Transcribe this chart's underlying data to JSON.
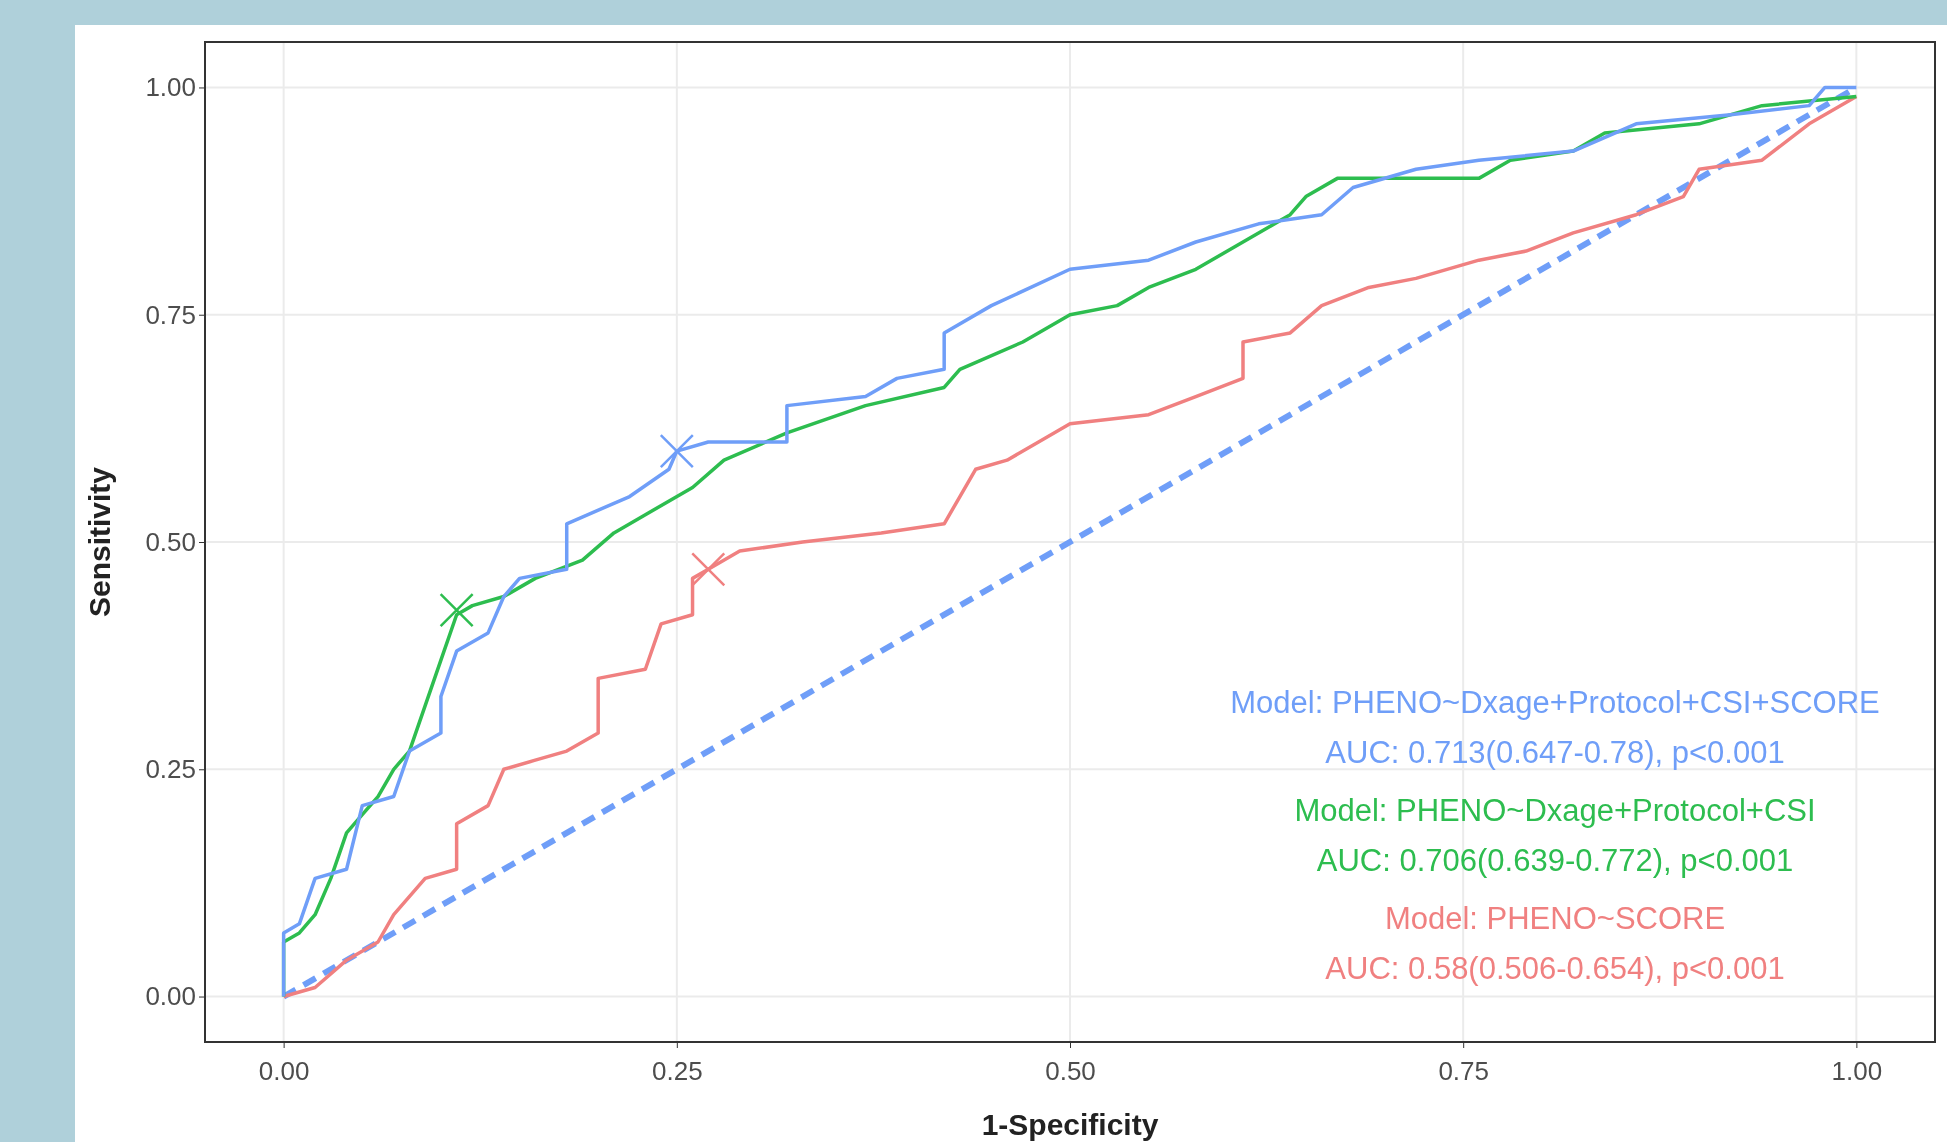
{
  "chart_data": {
    "type": "line",
    "xlabel": "1-Specificity",
    "ylabel": "Sensitivity",
    "xlim": [
      -0.05,
      1.05
    ],
    "ylim": [
      -0.05,
      1.05
    ],
    "xticks": [
      {
        "value": 0,
        "label": "0.00"
      },
      {
        "value": 0.25,
        "label": "0.25"
      },
      {
        "value": 0.5,
        "label": "0.50"
      },
      {
        "value": 0.75,
        "label": "0.75"
      },
      {
        "value": 1,
        "label": "1.00"
      }
    ],
    "yticks": [
      {
        "value": 0,
        "label": "0.00"
      },
      {
        "value": 0.25,
        "label": "0.25"
      },
      {
        "value": 0.5,
        "label": "0.50"
      },
      {
        "value": 0.75,
        "label": "0.75"
      },
      {
        "value": 1,
        "label": "1.00"
      }
    ],
    "grid": true,
    "series": [
      {
        "color": "#6f9ef8",
        "line_style": "dashed",
        "x": [
          0,
          1
        ],
        "values": [
          0,
          1
        ]
      },
      {
        "color": "#f08080",
        "line_style": "solid",
        "x": [
          0,
          0.02,
          0.04,
          0.06,
          0.07,
          0.09,
          0.11,
          0.11,
          0.13,
          0.14,
          0.16,
          0.18,
          0.2,
          0.2,
          0.23,
          0.24,
          0.26,
          0.26,
          0.27,
          0.29,
          0.33,
          0.38,
          0.42,
          0.43,
          0.44,
          0.46,
          0.48,
          0.5,
          0.55,
          0.58,
          0.61,
          0.61,
          0.64,
          0.66,
          0.69,
          0.72,
          0.76,
          0.79,
          0.82,
          0.86,
          0.89,
          0.9,
          0.94,
          0.97,
          1
        ],
        "values": [
          0,
          0.01,
          0.04,
          0.06,
          0.09,
          0.13,
          0.14,
          0.19,
          0.21,
          0.25,
          0.26,
          0.27,
          0.29,
          0.35,
          0.36,
          0.41,
          0.42,
          0.46,
          0.47,
          0.49,
          0.5,
          0.51,
          0.52,
          0.55,
          0.58,
          0.59,
          0.61,
          0.63,
          0.64,
          0.66,
          0.68,
          0.72,
          0.73,
          0.76,
          0.78,
          0.79,
          0.81,
          0.82,
          0.84,
          0.86,
          0.88,
          0.91,
          0.92,
          0.96,
          0.99
        ]
      },
      {
        "color": "#2dbd4f",
        "line_style": "solid",
        "x": [
          0,
          0,
          0.01,
          0.02,
          0.03,
          0.04,
          0.05,
          0.06,
          0.07,
          0.08,
          0.09,
          0.1,
          0.11,
          0.12,
          0.14,
          0.16,
          0.19,
          0.21,
          0.23,
          0.26,
          0.28,
          0.32,
          0.37,
          0.42,
          0.43,
          0.47,
          0.5,
          0.53,
          0.55,
          0.58,
          0.61,
          0.64,
          0.65,
          0.67,
          0.76,
          0.78,
          0.82,
          0.84,
          0.9,
          0.94,
          1
        ],
        "values": [
          0,
          0.06,
          0.07,
          0.09,
          0.13,
          0.18,
          0.2,
          0.22,
          0.25,
          0.27,
          0.32,
          0.37,
          0.42,
          0.43,
          0.44,
          0.46,
          0.48,
          0.51,
          0.53,
          0.56,
          0.59,
          0.62,
          0.65,
          0.67,
          0.69,
          0.72,
          0.75,
          0.76,
          0.78,
          0.8,
          0.83,
          0.86,
          0.88,
          0.9,
          0.9,
          0.92,
          0.93,
          0.95,
          0.96,
          0.98,
          0.99
        ]
      },
      {
        "color": "#6f9ef8",
        "line_style": "solid",
        "x": [
          0,
          0,
          0.01,
          0.02,
          0.04,
          0.05,
          0.07,
          0.08,
          0.1,
          0.1,
          0.11,
          0.13,
          0.14,
          0.15,
          0.18,
          0.18,
          0.22,
          0.245,
          0.25,
          0.27,
          0.32,
          0.32,
          0.37,
          0.39,
          0.42,
          0.42,
          0.45,
          0.5,
          0.55,
          0.58,
          0.62,
          0.66,
          0.68,
          0.72,
          0.76,
          0.82,
          0.86,
          0.92,
          0.97,
          0.98,
          1
        ],
        "values": [
          0,
          0.07,
          0.08,
          0.13,
          0.14,
          0.21,
          0.22,
          0.27,
          0.29,
          0.33,
          0.38,
          0.4,
          0.44,
          0.46,
          0.47,
          0.52,
          0.55,
          0.58,
          0.6,
          0.61,
          0.61,
          0.65,
          0.66,
          0.68,
          0.69,
          0.73,
          0.76,
          0.8,
          0.81,
          0.83,
          0.85,
          0.86,
          0.89,
          0.91,
          0.92,
          0.93,
          0.96,
          0.97,
          0.98,
          1,
          1
        ]
      },
      {
        "type": "scatter",
        "marker": "cross",
        "color": "#6f9ef8",
        "x": [
          0.25
        ],
        "values": [
          0.6
        ]
      },
      {
        "type": "scatter",
        "marker": "cross",
        "color": "#2dbd4f",
        "x": [
          0.11
        ],
        "values": [
          0.425
        ]
      },
      {
        "type": "scatter",
        "marker": "cross",
        "color": "#f08080",
        "x": [
          0.27
        ],
        "values": [
          0.47
        ]
      }
    ],
    "annotations": [
      "Model: PHENO~Dxage+Protocol+CSI+SCORE",
      "AUC: 0.713(0.647-0.78), p<0.001",
      "Model: PHENO~Dxage+Protocol+CSI",
      "AUC: 0.706(0.639-0.772), p<0.001",
      "Model: PHENO~SCORE",
      "AUC: 0.58(0.506-0.654), p<0.001"
    ]
  }
}
